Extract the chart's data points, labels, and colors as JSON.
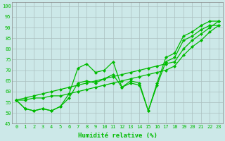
{
  "title": "",
  "xlabel": "Humidité relative (%)",
  "ylabel": "",
  "bg_color": "#cce8e8",
  "grid_color": "#aabfbf",
  "line_color": "#00bb00",
  "marker_color": "#00bb00",
  "xlim": [
    -0.5,
    23.5
  ],
  "ylim": [
    45,
    102
  ],
  "yticks": [
    45,
    50,
    55,
    60,
    65,
    70,
    75,
    80,
    85,
    90,
    95,
    100
  ],
  "xticks": [
    0,
    1,
    2,
    3,
    4,
    5,
    6,
    7,
    8,
    9,
    10,
    11,
    12,
    13,
    14,
    15,
    16,
    17,
    18,
    19,
    20,
    21,
    22,
    23
  ],
  "series": [
    [
      56,
      52,
      51,
      52,
      51,
      53,
      59,
      71,
      73,
      69,
      70,
      74,
      62,
      65,
      64,
      51,
      64,
      76,
      78,
      86,
      88,
      91,
      93,
      93
    ],
    [
      56,
      52,
      51,
      52,
      51,
      53,
      57,
      64,
      65,
      64,
      66,
      68,
      62,
      64,
      63,
      51,
      63,
      74,
      76,
      84,
      86,
      89,
      91,
      91
    ],
    [
      56,
      57,
      58,
      59,
      60,
      61,
      62,
      63,
      64,
      65,
      66,
      67,
      68,
      69,
      70,
      71,
      72,
      73,
      74,
      80,
      84,
      87,
      90,
      93
    ],
    [
      56,
      56,
      57,
      57,
      58,
      58,
      59,
      60,
      61,
      62,
      63,
      64,
      65,
      66,
      67,
      68,
      69,
      70,
      72,
      77,
      81,
      84,
      88,
      91
    ]
  ],
  "marker": "D",
  "markersize": 2,
  "linewidth": 0.9
}
